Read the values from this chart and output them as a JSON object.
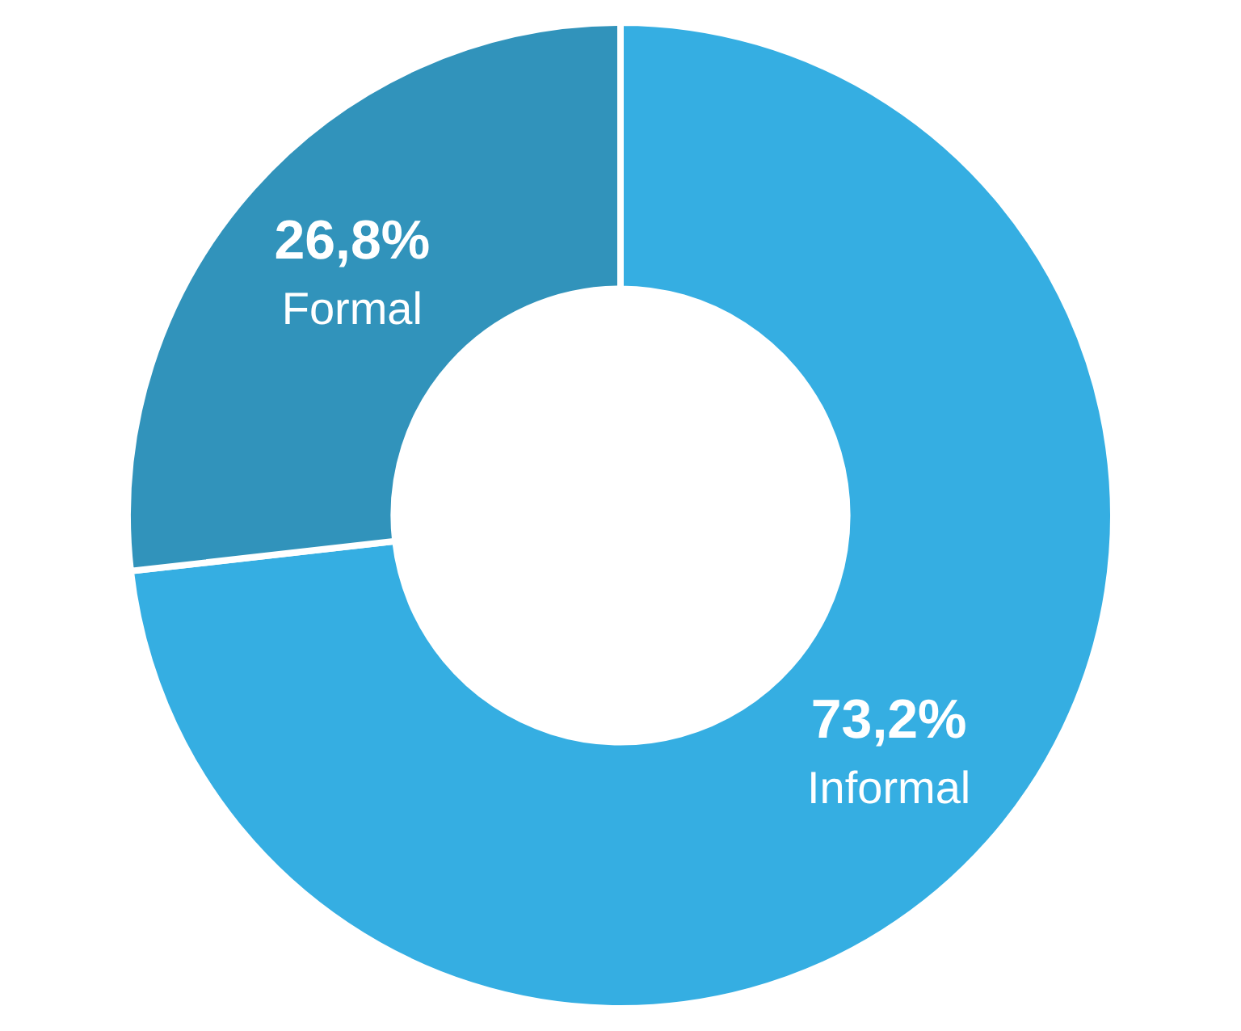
{
  "chart_data": {
    "type": "donut",
    "categories": [
      "Informal",
      "Formal"
    ],
    "values": [
      73.2,
      26.8
    ],
    "colors": [
      "#35aee2",
      "#3193bb"
    ],
    "value_labels": [
      "73,2%",
      "26,8%"
    ],
    "legend": false
  }
}
